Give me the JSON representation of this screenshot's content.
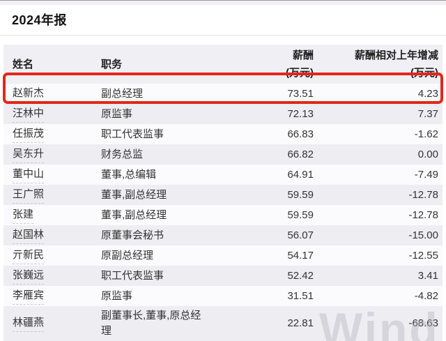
{
  "title": "2024年报",
  "watermark": "Wind",
  "colors": {
    "accent_red": "#e2271c",
    "header_bg": "#f0eff4",
    "row_alt_bg": "#ededf2",
    "row_bg": "#fbfbfd",
    "text": "#333333"
  },
  "table": {
    "columns": [
      {
        "key": "name",
        "label": "姓名",
        "unit": ""
      },
      {
        "key": "position",
        "label": "职务",
        "unit": ""
      },
      {
        "key": "salary",
        "label": "薪酬",
        "unit": "(万元)"
      },
      {
        "key": "change",
        "label": "薪酬相对上年增减",
        "unit": "(万元)"
      }
    ],
    "rows": [
      {
        "name": "赵新杰",
        "position": "副总经理",
        "salary": "73.51",
        "change": "4.23",
        "highlighted": true
      },
      {
        "name": "汪林中",
        "position": "原监事",
        "salary": "72.13",
        "change": "7.37"
      },
      {
        "name": "任振茂",
        "position": "职工代表监事",
        "salary": "66.83",
        "change": "-1.62"
      },
      {
        "name": "吴东升",
        "position": "财务总监",
        "salary": "66.82",
        "change": "0.00"
      },
      {
        "name": "董中山",
        "position": "董事,总编辑",
        "salary": "64.91",
        "change": "-7.49"
      },
      {
        "name": "王广照",
        "position": "董事,副总经理",
        "salary": "59.59",
        "change": "-12.78"
      },
      {
        "name": "张建",
        "position": "董事,副总经理",
        "salary": "59.59",
        "change": "-12.78"
      },
      {
        "name": "赵国林",
        "position": "原董事会秘书",
        "salary": "56.07",
        "change": "-15.00"
      },
      {
        "name": "亓新民",
        "position": "原副总经理",
        "salary": "54.17",
        "change": "-12.55"
      },
      {
        "name": "张巍远",
        "position": "职工代表监事",
        "salary": "52.42",
        "change": "3.41"
      },
      {
        "name": "李雁宾",
        "position": "原监事",
        "salary": "31.51",
        "change": "-4.82"
      },
      {
        "name": "林疆燕",
        "position": "副董事长,董事,原总经理",
        "salary": "22.81",
        "change": "-68.63"
      }
    ]
  }
}
